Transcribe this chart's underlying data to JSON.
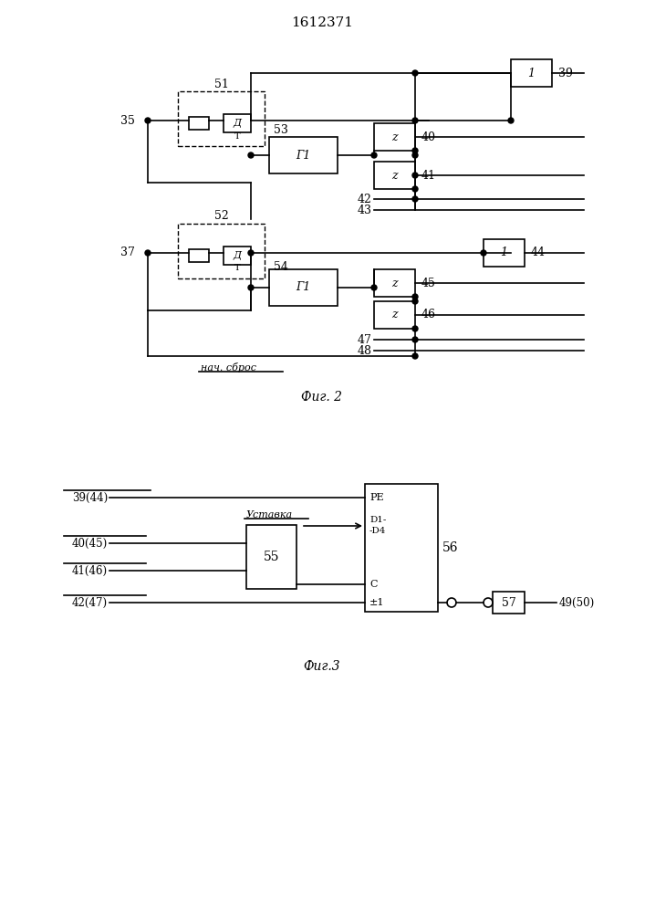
{
  "title": "1612371",
  "fig2_label": "Фиг. 2",
  "fig3_label": "Фиг.3",
  "bg_color": "#ffffff",
  "line_color": "#000000",
  "fig_width": 7.07,
  "fig_height": 10.0
}
